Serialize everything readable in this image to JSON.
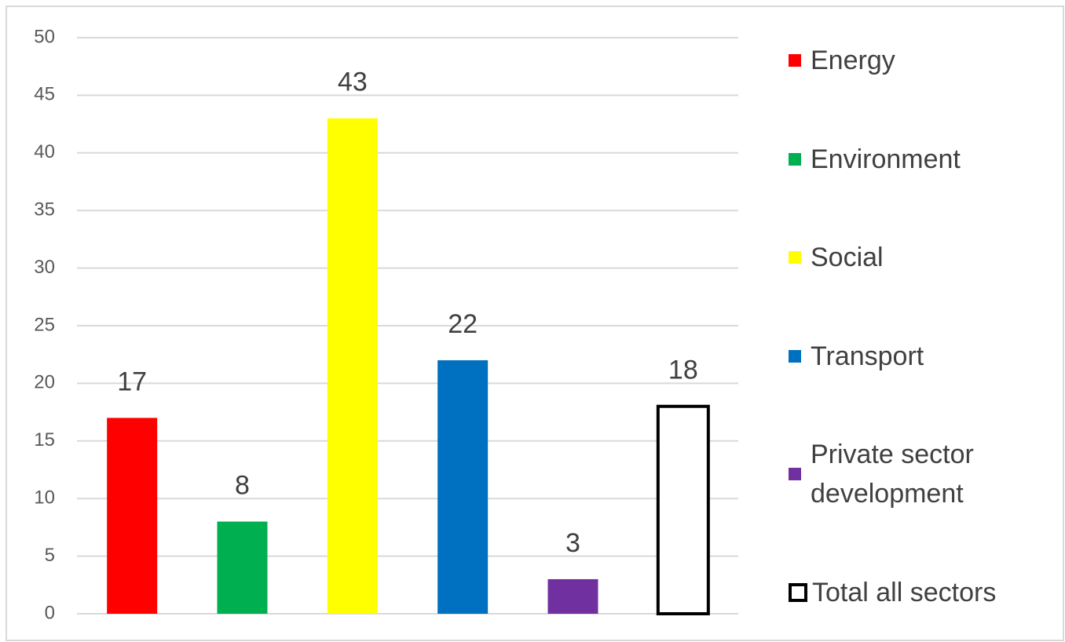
{
  "chart_data": {
    "type": "bar",
    "categories": [
      "Energy",
      "Environment",
      "Social",
      "Transport",
      "Private sector development",
      "Total all sectors"
    ],
    "values": [
      17,
      8,
      43,
      22,
      3,
      18
    ],
    "colors": [
      "#ff0000",
      "#00b050",
      "#ffff00",
      "#0070c0",
      "#7030a0",
      "#ffffff"
    ],
    "ylim": [
      0,
      50
    ],
    "yticks": [
      0,
      5,
      10,
      15,
      20,
      25,
      30,
      35,
      40,
      45,
      50
    ],
    "grid": true,
    "legend": "right"
  }
}
